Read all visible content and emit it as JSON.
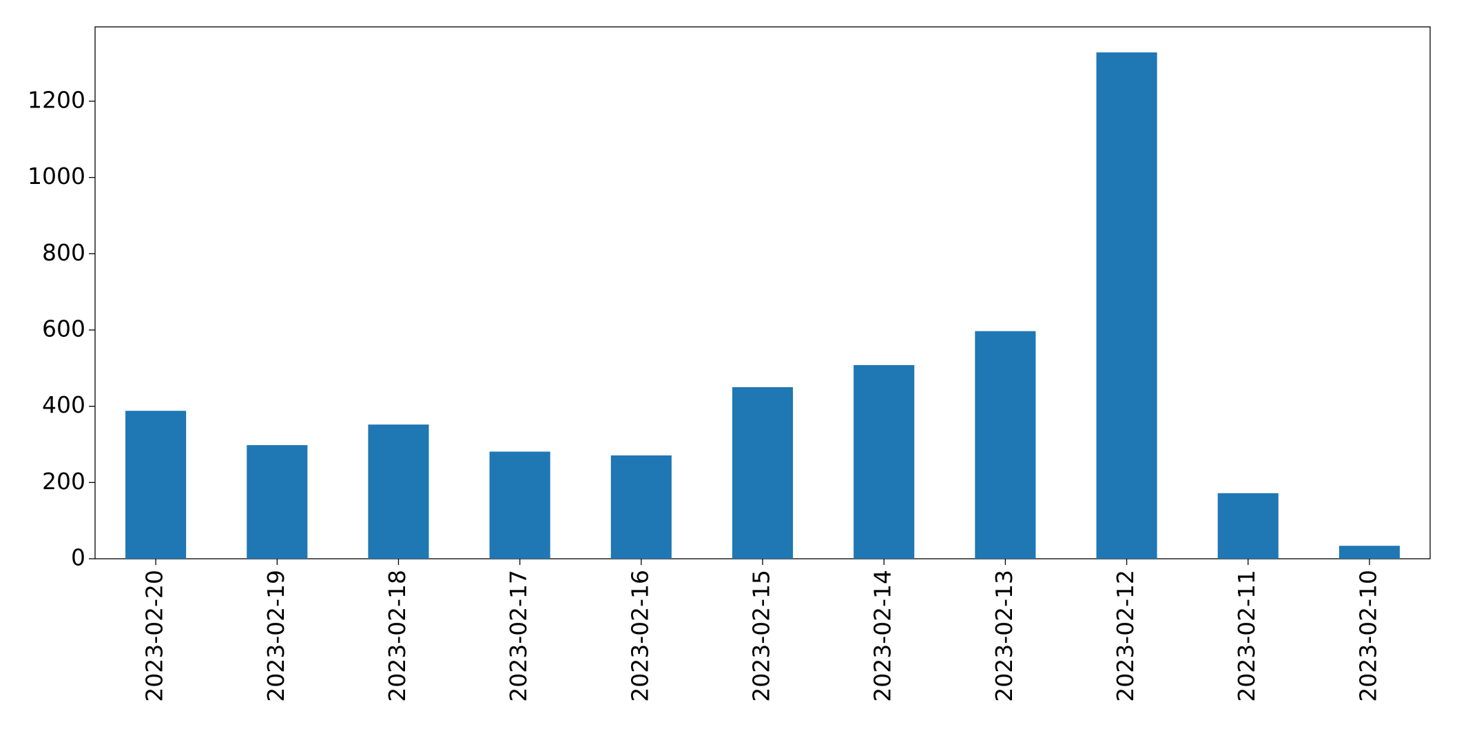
{
  "chart_data": {
    "type": "bar",
    "categories": [
      "2023-02-20",
      "2023-02-19",
      "2023-02-18",
      "2023-02-17",
      "2023-02-16",
      "2023-02-15",
      "2023-02-14",
      "2023-02-13",
      "2023-02-12",
      "2023-02-11",
      "2023-02-10"
    ],
    "values": [
      388,
      298,
      352,
      281,
      271,
      450,
      508,
      597,
      1328,
      172,
      34
    ],
    "color": "#1f77b4",
    "ylim": [
      0,
      1395
    ],
    "yticks": [
      0,
      200,
      400,
      600,
      800,
      1000,
      1200
    ],
    "grid": false
  }
}
